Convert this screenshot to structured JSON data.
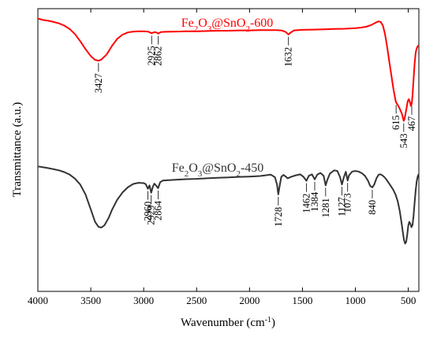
{
  "chart_data": {
    "type": "line",
    "title": "",
    "xlabel": "Wavenumber (cm",
    "xlabel_sup": "-1",
    "xlabel_suffix": ")",
    "ylabel": "Transmittance (a.u.)",
    "xlim": [
      4000,
      400
    ],
    "x_reversed": true,
    "ylim": [
      0,
      100
    ],
    "grid": false,
    "x_ticks": [
      4000,
      3500,
      3000,
      2500,
      2000,
      1500,
      1000,
      500
    ],
    "x_tick_labels": [
      "4000",
      "3500",
      "3000",
      "2500",
      "2000",
      "1500",
      "1000",
      "500"
    ],
    "series": [
      {
        "name_parts": [
          "Fe",
          "2",
          "O",
          "3",
          "@SnO",
          "2",
          "-600"
        ],
        "color": "#ff0000",
        "x": [
          4000,
          3950,
          3900,
          3850,
          3800,
          3750,
          3700,
          3650,
          3600,
          3550,
          3500,
          3460,
          3427,
          3400,
          3350,
          3300,
          3250,
          3200,
          3150,
          3100,
          3050,
          3000,
          2960,
          2925,
          2900,
          2880,
          2862,
          2840,
          2800,
          2700,
          2600,
          2500,
          2400,
          2300,
          2200,
          2100,
          2000,
          1900,
          1800,
          1750,
          1700,
          1660,
          1632,
          1610,
          1580,
          1500,
          1400,
          1300,
          1200,
          1100,
          1000,
          950,
          900,
          850,
          800,
          780,
          760,
          740,
          720,
          700,
          680,
          660,
          640,
          620,
          615,
          600,
          580,
          560,
          550,
          543,
          535,
          520,
          505,
          495,
          485,
          475,
          467,
          460,
          450,
          440,
          430,
          420,
          410,
          400
        ],
        "values": [
          96.5,
          96.0,
          95.7,
          95.3,
          94.8,
          94.0,
          92.8,
          91.0,
          88.5,
          85.7,
          83.2,
          81.9,
          81.6,
          82.0,
          83.8,
          86.8,
          89.3,
          90.8,
          91.6,
          91.9,
          92.0,
          92.0,
          91.9,
          91.3,
          91.7,
          91.6,
          91.2,
          91.7,
          91.8,
          91.9,
          92.0,
          92.0,
          92.1,
          92.2,
          92.2,
          92.3,
          92.3,
          92.4,
          92.4,
          92.4,
          92.3,
          91.8,
          90.9,
          91.6,
          92.3,
          92.5,
          92.6,
          92.7,
          92.8,
          92.9,
          93.1,
          93.3,
          93.6,
          94.2,
          95.2,
          95.5,
          95.3,
          94.0,
          91.0,
          86.5,
          81.5,
          76.5,
          71.5,
          67.5,
          66.8,
          66.0,
          64.6,
          62.8,
          61.3,
          60.3,
          61.1,
          64.0,
          67.3,
          68.0,
          67.0,
          65.6,
          66.4,
          69.5,
          75.0,
          80.5,
          84.5,
          86.0,
          86.8,
          87.0
        ]
      },
      {
        "name_parts": [
          "Fe",
          "2",
          "O",
          "3",
          "@SnO",
          "2",
          "-450"
        ],
        "color": "#333333",
        "x": [
          4000,
          3950,
          3900,
          3850,
          3800,
          3750,
          3700,
          3650,
          3600,
          3550,
          3500,
          3460,
          3427,
          3400,
          3370,
          3330,
          3300,
          3250,
          3200,
          3150,
          3100,
          3050,
          3000,
          2980,
          2960,
          2945,
          2929,
          2915,
          2900,
          2880,
          2864,
          2845,
          2820,
          2700,
          2600,
          2500,
          2400,
          2300,
          2200,
          2100,
          2000,
          1900,
          1800,
          1760,
          1740,
          1728,
          1715,
          1700,
          1680,
          1660,
          1640,
          1600,
          1560,
          1520,
          1490,
          1462,
          1440,
          1410,
          1384,
          1360,
          1330,
          1300,
          1281,
          1265,
          1240,
          1200,
          1170,
          1145,
          1127,
          1110,
          1090,
          1073,
          1060,
          1030,
          1000,
          970,
          940,
          910,
          880,
          860,
          840,
          820,
          800,
          780,
          760,
          740,
          720,
          700,
          680,
          660,
          640,
          620,
          600,
          580,
          560,
          550,
          540,
          530,
          520,
          510,
          500,
          490,
          480,
          470,
          460,
          450,
          440,
          430,
          420,
          410,
          400
        ],
        "values": [
          44.2,
          43.9,
          43.6,
          43.2,
          42.8,
          42.2,
          41.3,
          39.9,
          37.8,
          34.3,
          29.0,
          24.6,
          22.8,
          22.6,
          23.4,
          26.1,
          28.8,
          32.4,
          35.0,
          36.8,
          38.0,
          38.4,
          38.3,
          37.9,
          36.3,
          37.5,
          34.9,
          36.9,
          38.1,
          37.3,
          36.5,
          38.6,
          39.2,
          39.5,
          39.7,
          39.8,
          40.0,
          40.2,
          40.3,
          40.5,
          40.6,
          40.8,
          41.3,
          40.4,
          37.8,
          34.3,
          37.4,
          40.5,
          41.2,
          40.7,
          40.0,
          40.6,
          41.1,
          41.4,
          40.5,
          39.1,
          40.9,
          41.4,
          39.6,
          41.3,
          41.9,
          40.9,
          37.5,
          39.4,
          41.7,
          42.8,
          42.6,
          40.5,
          37.8,
          40.2,
          42.3,
          39.2,
          41.0,
          42.4,
          42.6,
          42.4,
          41.8,
          40.9,
          39.1,
          37.3,
          36.8,
          37.9,
          40.0,
          41.3,
          41.4,
          40.9,
          40.2,
          39.2,
          38.1,
          37.0,
          35.8,
          34.2,
          31.9,
          28.4,
          23.4,
          20.5,
          18.1,
          16.9,
          17.5,
          19.9,
          23.3,
          24.6,
          23.9,
          22.7,
          23.5,
          26.8,
          31.3,
          35.8,
          39.0,
          40.8,
          41.5
        ]
      }
    ],
    "annotations": [
      {
        "label": "3427",
        "x": 3427,
        "series": 0
      },
      {
        "label": "2925",
        "x": 2925,
        "series": 0
      },
      {
        "label": "2862",
        "x": 2862,
        "series": 0
      },
      {
        "label": "1632",
        "x": 1632,
        "series": 0
      },
      {
        "label": "615",
        "x": 615,
        "series": 0
      },
      {
        "label": "543",
        "x": 543,
        "series": 0
      },
      {
        "label": "467",
        "x": 467,
        "series": 0
      },
      {
        "label": "2960",
        "x": 2960,
        "series": 1
      },
      {
        "label": "2929",
        "x": 2929,
        "series": 1
      },
      {
        "label": "2864",
        "x": 2864,
        "series": 1
      },
      {
        "label": "1728",
        "x": 1728,
        "series": 1
      },
      {
        "label": "1462",
        "x": 1462,
        "series": 1
      },
      {
        "label": "1384",
        "x": 1384,
        "series": 1
      },
      {
        "label": "1281",
        "x": 1281,
        "series": 1
      },
      {
        "label": "1127",
        "x": 1127,
        "series": 1
      },
      {
        "label": "1073",
        "x": 1073,
        "series": 1
      },
      {
        "label": "840",
        "x": 840,
        "series": 1
      }
    ]
  }
}
